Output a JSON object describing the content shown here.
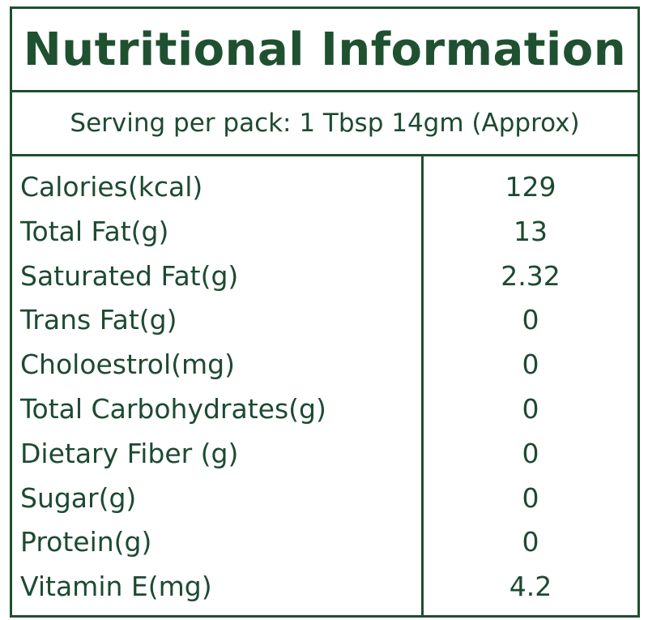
{
  "header": {
    "title": "Nutritional Information",
    "serving": "Serving per pack: 1 Tbsp 14gm (Approx)"
  },
  "table": {
    "rows": [
      [
        "Calories(kcal)",
        "129"
      ],
      [
        "Total Fat(g)",
        "13"
      ],
      [
        "Saturated Fat(g)",
        "2.32"
      ],
      [
        "Trans Fat(g)",
        "0"
      ],
      [
        "Choloestrol(mg)",
        "0"
      ],
      [
        "Total Carbohydrates(g)",
        "0"
      ],
      [
        "Dietary Fiber (g)",
        "0"
      ],
      [
        "Sugar(g)",
        "0"
      ],
      [
        "Protein(g)",
        "0"
      ],
      [
        "Vitamin E(mg)",
        "4.2"
      ]
    ]
  }
}
